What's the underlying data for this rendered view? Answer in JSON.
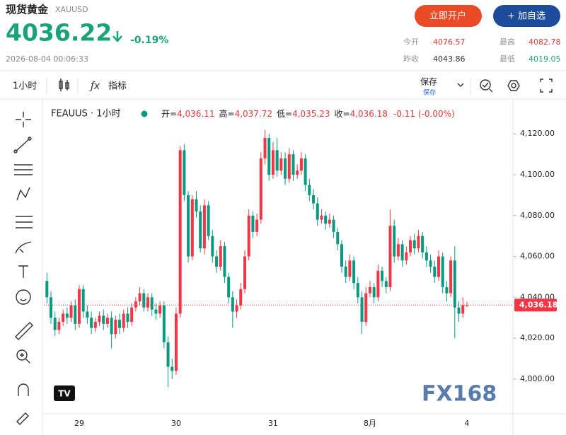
{
  "header": {
    "name": "现货黄金",
    "symbol": "XAUUSD",
    "price": "4036.22",
    "change": "-0.19%",
    "timestamp": "2026-08-04 00:06:33",
    "buttons": [
      "立即开户",
      "+ 加自选"
    ],
    "stats": [
      {
        "label": "今开",
        "value": "4076.57"
      },
      {
        "label": "最高",
        "value": "4082.78"
      },
      {
        "label": "昨收",
        "value": "4043.86"
      },
      {
        "label": "最低",
        "value": "4019.05"
      }
    ]
  },
  "toolbar": {
    "interval": "1小时",
    "indicators": "指标",
    "save": "保存",
    "save_sub": "保存"
  },
  "chart_data": {
    "type": "candlestick",
    "title": "FEAUUS · 1小时",
    "legend": [
      {
        "label": "开=",
        "value": "4,036.11"
      },
      {
        "label": "高=",
        "value": "4,037.72"
      },
      {
        "label": "低=",
        "value": "4,035.23"
      },
      {
        "label": "收=",
        "value": "4,036.18"
      }
    ],
    "change": "-0.11 (-0.00%)",
    "categories": [
      null,
      null,
      null,
      null,
      null,
      null,
      null,
      null,
      "29",
      null,
      null,
      null,
      null,
      null,
      null,
      null,
      null,
      null,
      null,
      null,
      null,
      null,
      null,
      null,
      null,
      null,
      null,
      null,
      null,
      null,
      null,
      null,
      "30",
      null,
      null,
      null,
      null,
      null,
      null,
      null,
      null,
      null,
      null,
      null,
      null,
      null,
      null,
      null,
      null,
      null,
      null,
      null,
      null,
      null,
      null,
      null,
      "31",
      null,
      null,
      null,
      null,
      null,
      null,
      null,
      null,
      null,
      null,
      null,
      null,
      null,
      null,
      null,
      null,
      null,
      null,
      null,
      null,
      null,
      null,
      null,
      "8月",
      null,
      null,
      null,
      null,
      null,
      null,
      null,
      null,
      null,
      null,
      null,
      null,
      null,
      null,
      null,
      null,
      null,
      null,
      null,
      null,
      null,
      null,
      null,
      "4"
    ],
    "open": [
      4048,
      4040,
      4030,
      4024,
      4028,
      4032,
      4030,
      4036,
      4027,
      4044,
      4033,
      4030,
      4025,
      4028,
      4031,
      4027,
      4030,
      4022,
      4029,
      4025,
      4032,
      4028,
      4035,
      4038,
      4042,
      4035,
      4040,
      4034,
      4032,
      4036,
      4018,
      4006,
      4004,
      4032,
      4112,
      4090,
      4060,
      4088,
      4082,
      4064,
      4085,
      4070,
      4060,
      4055,
      4065,
      4050,
      4040,
      4033,
      4036,
      4044,
      4060,
      4080,
      4072,
      4078,
      4108,
      4118,
      4100,
      4112,
      4102,
      4108,
      4098,
      4110,
      4100,
      4102,
      4108,
      4095,
      4090,
      4086,
      4078,
      4080,
      4076,
      4078,
      4072,
      4066,
      4055,
      4050,
      4058,
      4047,
      4040,
      4028,
      4042,
      4045,
      4040,
      4053,
      4048,
      4045,
      4075,
      4060,
      4066,
      4058,
      4062,
      4068,
      4064,
      4070,
      4062,
      4058,
      4055,
      4050,
      4060,
      4045,
      4042,
      4058,
      4035,
      4032,
      4036.11
    ],
    "high": [
      4052,
      4043,
      4033,
      4030,
      4034,
      4035,
      4038,
      4039,
      4046,
      4046,
      4036,
      4033,
      4030,
      4033,
      4034,
      4032,
      4033,
      4031,
      4032,
      4034,
      4035,
      4037,
      4040,
      4045,
      4044,
      4042,
      4042,
      4037,
      4038,
      4038,
      4021,
      4010,
      4035,
      4114,
      4115,
      4092,
      4090,
      4092,
      4085,
      4088,
      4087,
      4073,
      4063,
      4068,
      4067,
      4052,
      4043,
      4039,
      4047,
      4063,
      4083,
      4082,
      4081,
      4111,
      4122,
      4120,
      4116,
      4118,
      4111,
      4111,
      4113,
      4112,
      4105,
      4111,
      4110,
      4098,
      4093,
      4089,
      4083,
      4082,
      4081,
      4080,
      4074,
      4068,
      4058,
      4061,
      4060,
      4050,
      4043,
      4045,
      4048,
      4047,
      4056,
      4055,
      4050,
      4083,
      4078,
      4069,
      4068,
      4065,
      4070,
      4071,
      4073,
      4072,
      4065,
      4061,
      4058,
      4063,
      4062,
      4048,
      4060,
      4065,
      4038,
      4040,
      4037.72
    ],
    "low": [
      4037,
      4027,
      4021,
      4022,
      4026,
      4027,
      4028,
      4024,
      4025,
      4030,
      4027,
      4022,
      4023,
      4026,
      4024,
      4025,
      4015,
      4020,
      4022,
      4023,
      4025,
      4026,
      4033,
      4036,
      4033,
      4033,
      4031,
      4029,
      4030,
      4015,
      3996,
      4000,
      4002,
      4030,
      4087,
      4057,
      4058,
      4079,
      4062,
      4061,
      4068,
      4057,
      4052,
      4053,
      4047,
      4037,
      4025,
      4030,
      4034,
      4042,
      4058,
      4069,
      4070,
      4076,
      4105,
      4097,
      4098,
      4099,
      4100,
      4095,
      4096,
      4097,
      4098,
      4100,
      4092,
      4087,
      4083,
      4075,
      4076,
      4073,
      4074,
      4069,
      4063,
      4052,
      4047,
      4048,
      4044,
      4037,
      4022,
      4026,
      4040,
      4037,
      4038,
      4045,
      4042,
      4043,
      4057,
      4058,
      4055,
      4056,
      4060,
      4061,
      4062,
      4059,
      4055,
      4052,
      4047,
      4048,
      4042,
      4038,
      4040,
      4020,
      4028,
      4030,
      4035.23
    ],
    "close": [
      4040,
      4030,
      4024,
      4028,
      4032,
      4030,
      4036,
      4027,
      4044,
      4033,
      4030,
      4025,
      4028,
      4031,
      4027,
      4030,
      4022,
      4029,
      4025,
      4032,
      4028,
      4035,
      4038,
      4042,
      4035,
      4040,
      4034,
      4032,
      4036,
      4018,
      4006,
      4004,
      4032,
      4112,
      4090,
      4060,
      4088,
      4082,
      4064,
      4085,
      4070,
      4060,
      4055,
      4065,
      4050,
      4040,
      4033,
      4036,
      4044,
      4060,
      4080,
      4072,
      4078,
      4108,
      4118,
      4100,
      4112,
      4102,
      4108,
      4098,
      4110,
      4100,
      4102,
      4108,
      4095,
      4090,
      4086,
      4078,
      4080,
      4076,
      4078,
      4072,
      4066,
      4055,
      4050,
      4058,
      4047,
      4040,
      4028,
      4042,
      4045,
      4040,
      4053,
      4048,
      4045,
      4075,
      4060,
      4066,
      4058,
      4062,
      4068,
      4064,
      4070,
      4062,
      4058,
      4055,
      4050,
      4060,
      4045,
      4042,
      4058,
      4035,
      4032,
      4036.11,
      4036.18
    ],
    "up_color": "#f23645",
    "down_color": "#089981",
    "ylim": [
      3983,
      4136
    ],
    "yticks": [
      {
        "value": 4000,
        "label": "4,000.00"
      },
      {
        "value": 4020,
        "label": "4,020.00"
      },
      {
        "value": 4040,
        "label": "4,040.00"
      },
      {
        "value": 4060,
        "label": "4,060.00"
      },
      {
        "value": 4080,
        "label": "4,080.00"
      },
      {
        "value": 4100,
        "label": "4,100.00"
      },
      {
        "value": 4120,
        "label": "4,120.00"
      }
    ],
    "last_price": {
      "value": 4036.18,
      "label": "4,036.18"
    },
    "watermark": "FX168"
  }
}
